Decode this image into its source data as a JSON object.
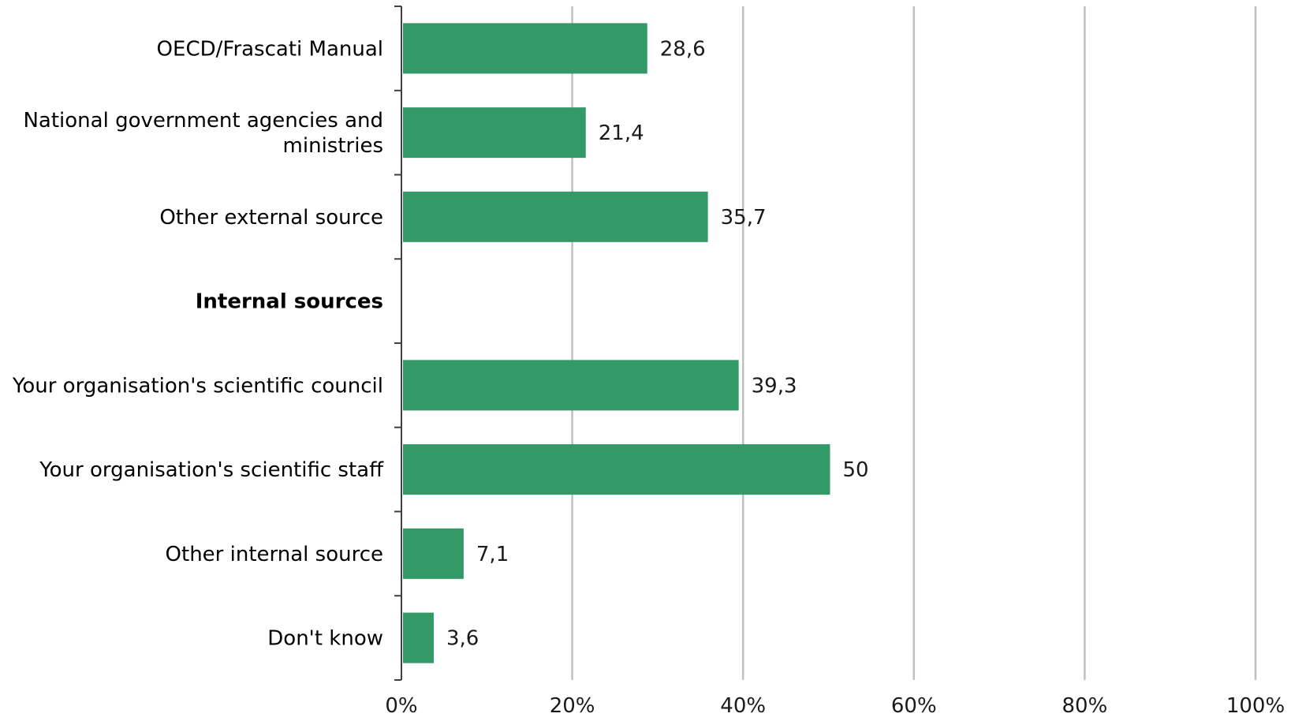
{
  "chart_data": {
    "type": "bar",
    "orientation": "horizontal",
    "title": "",
    "xlabel": "",
    "ylabel": "",
    "xlim": [
      0,
      100
    ],
    "grid": true,
    "bar_color": "#339966",
    "grid_color": "#c0c0c0",
    "categories": [
      {
        "label_lines": [
          "OECD/Frascati Manual"
        ],
        "value": 28.6,
        "value_label": "28,6",
        "bold": false
      },
      {
        "label_lines": [
          "National government agencies and",
          "ministries"
        ],
        "value": 21.4,
        "value_label": "21,4",
        "bold": false
      },
      {
        "label_lines": [
          "Other external source"
        ],
        "value": 35.7,
        "value_label": "35,7",
        "bold": false
      },
      {
        "label_lines": [
          "Internal sources"
        ],
        "value": null,
        "value_label": "",
        "bold": true
      },
      {
        "label_lines": [
          "Your organisation's scientific council"
        ],
        "value": 39.3,
        "value_label": "39,3",
        "bold": false
      },
      {
        "label_lines": [
          "Your organisation's scientific staff"
        ],
        "value": 50,
        "value_label": "50",
        "bold": false
      },
      {
        "label_lines": [
          "Other internal source"
        ],
        "value": 7.1,
        "value_label": "7,1",
        "bold": false
      },
      {
        "label_lines": [
          "Don't know"
        ],
        "value": 3.6,
        "value_label": "3,6",
        "bold": false
      }
    ],
    "x_ticks": [
      {
        "value": 0,
        "label": "0%"
      },
      {
        "value": 20,
        "label": "20%"
      },
      {
        "value": 40,
        "label": "40%"
      },
      {
        "value": 60,
        "label": "60%"
      },
      {
        "value": 80,
        "label": "80%"
      },
      {
        "value": 100,
        "label": "100%"
      }
    ]
  }
}
